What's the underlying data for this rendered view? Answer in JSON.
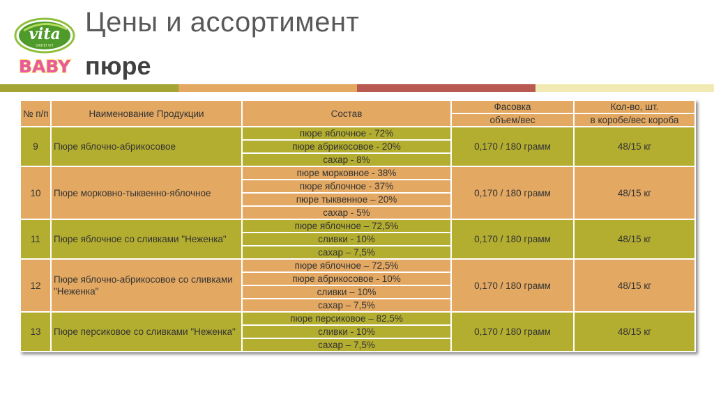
{
  "header": {
    "title": "Цены и ассортимент",
    "subtitle": "пюре"
  },
  "logo": {
    "brand": "vita",
    "tagline": "ORHEI VIT",
    "sub": "BABY"
  },
  "table": {
    "col_num": "№ п/п",
    "col_name": "Наименование Продукции",
    "col_comp": "Состав",
    "col_pack": "Фасовка",
    "col_pack_sub": "объем/вес",
    "col_qty": "Кол-во, шт.",
    "col_qty_sub": "в коробе/вес короба",
    "rows": [
      {
        "num": "9",
        "name": "Пюре яблочно-абрикосовое",
        "composition": [
          "пюре яблочное - 72%",
          "пюре абрикосовое - 20%",
          "сахар - 8%"
        ],
        "pack": "0,170 / 180 грамм",
        "qty": "48/15 кг"
      },
      {
        "num": "10",
        "name": "Пюре морковно-тыквенно-яблочное",
        "composition": [
          "пюре морковное - 38%",
          "пюре яблочное - 37%",
          "пюре тыквенное – 20%",
          "сахар - 5%"
        ],
        "pack": "0,170 / 180 грамм",
        "qty": "48/15 кг"
      },
      {
        "num": "11",
        "name": "Пюре яблочное со сливками \"Неженка\"",
        "composition": [
          "пюре яблочное – 72,5%",
          "сливки - 10%",
          "сахар – 7,5%"
        ],
        "pack": "0,170 / 180 грамм",
        "qty": "48/15 кг"
      },
      {
        "num": "12",
        "name": "Пюре яблочно-абрикосовое со сливками \"Неженка\"",
        "composition": [
          "пюре яблочное – 72,5%",
          "пюре абрикосовое - 10%",
          "сливки – 10%",
          "сахар – 7,5%"
        ],
        "pack": "0,170 / 180 грамм",
        "qty": "48/15 кг"
      },
      {
        "num": "13",
        "name": "Пюре персиковое со сливками \"Неженка\"",
        "composition": [
          "пюре персиковое – 82,5%",
          "сливки - 10%",
          "сахар – 7,5%"
        ],
        "pack": "0,170 / 180 грамм",
        "qty": "48/15 кг"
      }
    ]
  }
}
